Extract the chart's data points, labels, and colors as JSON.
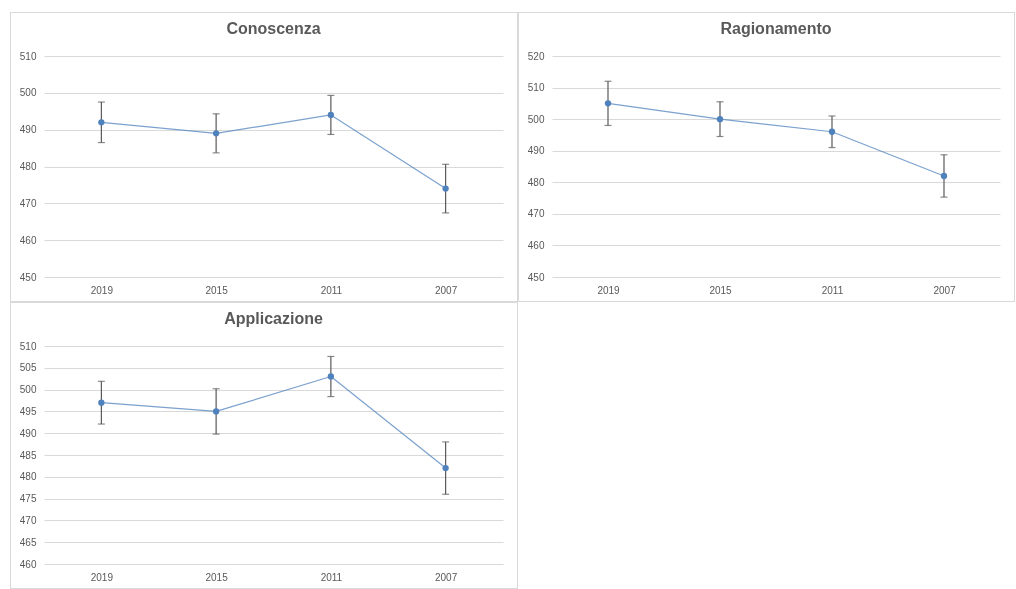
{
  "chart_data": [
    {
      "type": "line",
      "title": "Conoscenza",
      "categories": [
        "2019",
        "2015",
        "2011",
        "2007"
      ],
      "values": [
        492,
        489,
        494,
        474
      ],
      "errors": [
        5.5,
        5.3,
        5.3,
        6.6
      ],
      "color": "#4f81bd",
      "ylim": [
        450,
        510
      ],
      "yticks": [
        450,
        460,
        470,
        480,
        490,
        500,
        510
      ],
      "grid": "y",
      "marker": "circle"
    },
    {
      "type": "line",
      "title": "Ragionamento",
      "categories": [
        "2019",
        "2015",
        "2011",
        "2007"
      ],
      "values": [
        505,
        500,
        496,
        482
      ],
      "errors": [
        7,
        5.5,
        5,
        6.7
      ],
      "color": "#4f81bd",
      "ylim": [
        450,
        520
      ],
      "yticks": [
        450,
        460,
        470,
        480,
        490,
        500,
        510,
        520
      ],
      "grid": "y",
      "marker": "circle"
    },
    {
      "type": "line",
      "title": "Applicazione",
      "categories": [
        "2019",
        "2015",
        "2011",
        "2007"
      ],
      "values": [
        497,
        495,
        503,
        482
      ],
      "errors": [
        4.9,
        5.2,
        4.6,
        6
      ],
      "color": "#4f81bd",
      "ylim": [
        460,
        510
      ],
      "yticks": [
        460,
        465,
        470,
        475,
        480,
        485,
        490,
        495,
        500,
        505,
        510
      ],
      "grid": "y",
      "marker": "circle"
    }
  ]
}
